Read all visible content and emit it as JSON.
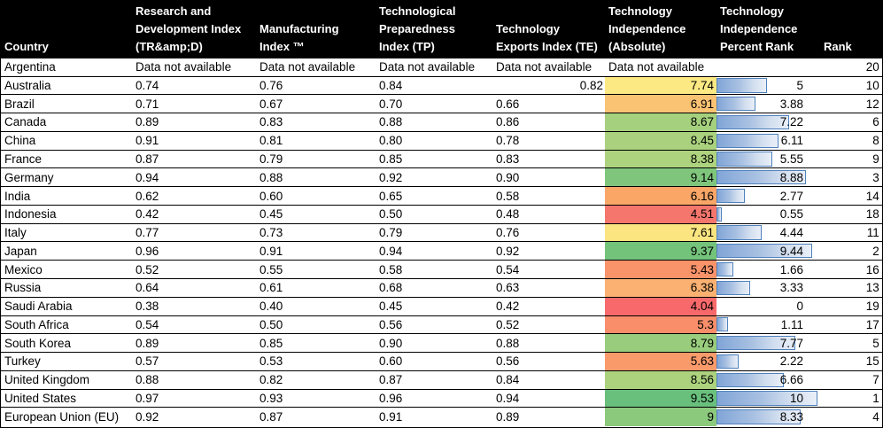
{
  "chart_data": {
    "type": "table",
    "columns": [
      {
        "id": "country",
        "label": "Country"
      },
      {
        "id": "rd",
        "label": "Research and\nDevelopment Index\n(TR&amp;D)"
      },
      {
        "id": "mfg",
        "label": "Manufacturing\nIndex ™"
      },
      {
        "id": "tp",
        "label": "Technological\nPreparedness\nIndex (TP)"
      },
      {
        "id": "te",
        "label": "Technology\nExports Index (TE)"
      },
      {
        "id": "abs",
        "label": "Technology\nIndependence\n(Absolute)"
      },
      {
        "id": "pct",
        "label": "Technology\nIndependence\nPercent Rank"
      },
      {
        "id": "rank",
        "label": "Rank"
      }
    ],
    "no_data_text": "Data not available",
    "bar_scale": {
      "min": 0,
      "max": 10
    },
    "styles": {
      "header_bg": "#000000",
      "header_fg": "#FFFFFF",
      "grid_border": "#000000",
      "bar_border": "#4F81BD",
      "bar_fill_left": "#81A5D7",
      "bar_fill_right": "#E9EFF8",
      "color_scale_min": "#F8696B",
      "color_scale_mid": "#FFEB84",
      "color_scale_max": "#63BE7B"
    },
    "rows": [
      {
        "country": "Argentina",
        "rd": "Data not available",
        "mfg": "Data not available",
        "tp": "Data not available",
        "te": "Data not available",
        "te_align": "left",
        "abs": "Data not available",
        "abs_color": null,
        "pct": "",
        "pct_value": null,
        "rank": "20"
      },
      {
        "country": "Australia",
        "rd": "0.74",
        "mfg": "0.76",
        "tp": "0.84",
        "te": "0.82",
        "te_align": "right",
        "abs": "7.74",
        "abs_color": "#FDE983",
        "pct": "5",
        "pct_value": 5,
        "rank": "10"
      },
      {
        "country": "Brazil",
        "rd": "0.71",
        "mfg": "0.67",
        "tp": "0.70",
        "te": "0.66",
        "te_align": "left",
        "abs": "6.91",
        "abs_color": "#FAC374",
        "pct": "3.88",
        "pct_value": 3.88,
        "rank": "12"
      },
      {
        "country": "Canada",
        "rd": "0.89",
        "mfg": "0.83",
        "tp": "0.88",
        "te": "0.86",
        "te_align": "left",
        "abs": "8.67",
        "abs_color": "#A5D07E",
        "pct": "7.22",
        "pct_value": 7.22,
        "rank": "6"
      },
      {
        "country": "China",
        "rd": "0.91",
        "mfg": "0.81",
        "tp": "0.80",
        "te": "0.78",
        "te_align": "left",
        "abs": "8.45",
        "abs_color": "#AAD27E",
        "pct": "6.11",
        "pct_value": 6.11,
        "rank": "8"
      },
      {
        "country": "France",
        "rd": "0.87",
        "mfg": "0.79",
        "tp": "0.85",
        "te": "0.83",
        "te_align": "left",
        "abs": "8.38",
        "abs_color": "#AED37F",
        "pct": "5.55",
        "pct_value": 5.55,
        "rank": "9"
      },
      {
        "country": "Germany",
        "rd": "0.94",
        "mfg": "0.88",
        "tp": "0.92",
        "te": "0.90",
        "te_align": "left",
        "abs": "9.14",
        "abs_color": "#7FC67C",
        "pct": "8.88",
        "pct_value": 8.88,
        "rank": "3"
      },
      {
        "country": "India",
        "rd": "0.62",
        "mfg": "0.60",
        "tp": "0.65",
        "te": "0.58",
        "te_align": "left",
        "abs": "6.16",
        "abs_color": "#F9A667",
        "pct": "2.77",
        "pct_value": 2.77,
        "rank": "14"
      },
      {
        "country": "Indonesia",
        "rd": "0.42",
        "mfg": "0.45",
        "tp": "0.50",
        "te": "0.48",
        "te_align": "left",
        "abs": "4.51",
        "abs_color": "#F5766C",
        "pct": "0.55",
        "pct_value": 0.55,
        "rank": "18"
      },
      {
        "country": "Italy",
        "rd": "0.77",
        "mfg": "0.73",
        "tp": "0.79",
        "te": "0.76",
        "te_align": "left",
        "abs": "7.61",
        "abs_color": "#FAE581",
        "pct": "4.44",
        "pct_value": 4.44,
        "rank": "11"
      },
      {
        "country": "Japan",
        "rd": "0.96",
        "mfg": "0.91",
        "tp": "0.94",
        "te": "0.92",
        "te_align": "left",
        "abs": "9.37",
        "abs_color": "#74C37B",
        "pct": "9.44",
        "pct_value": 9.44,
        "rank": "2"
      },
      {
        "country": "Mexico",
        "rd": "0.52",
        "mfg": "0.55",
        "tp": "0.58",
        "te": "0.54",
        "te_align": "left",
        "abs": "5.43",
        "abs_color": "#F9936A",
        "pct": "1.66",
        "pct_value": 1.66,
        "rank": "16"
      },
      {
        "country": "Russia",
        "rd": "0.64",
        "mfg": "0.61",
        "tp": "0.68",
        "te": "0.63",
        "te_align": "left",
        "abs": "6.38",
        "abs_color": "#FAB171",
        "pct": "3.33",
        "pct_value": 3.33,
        "rank": "13"
      },
      {
        "country": "Saudi Arabia",
        "rd": "0.38",
        "mfg": "0.40",
        "tp": "0.45",
        "te": "0.42",
        "te_align": "left",
        "abs": "4.04",
        "abs_color": "#F8696B",
        "pct": "0",
        "pct_value": 0,
        "rank": "19"
      },
      {
        "country": "South Africa",
        "rd": "0.54",
        "mfg": "0.50",
        "tp": "0.56",
        "te": "0.52",
        "te_align": "left",
        "abs": "5.3",
        "abs_color": "#F98E6A",
        "pct": "1.11",
        "pct_value": 1.11,
        "rank": "17"
      },
      {
        "country": "South Korea",
        "rd": "0.89",
        "mfg": "0.85",
        "tp": "0.90",
        "te": "0.88",
        "te_align": "left",
        "abs": "8.79",
        "abs_color": "#99CD7D",
        "pct": "7.77",
        "pct_value": 7.77,
        "rank": "5"
      },
      {
        "country": "Turkey",
        "rd": "0.57",
        "mfg": "0.53",
        "tp": "0.60",
        "te": "0.56",
        "te_align": "left",
        "abs": "5.63",
        "abs_color": "#F99A6B",
        "pct": "2.22",
        "pct_value": 2.22,
        "rank": "15"
      },
      {
        "country": "United Kingdom",
        "rd": "0.88",
        "mfg": "0.82",
        "tp": "0.87",
        "te": "0.84",
        "te_align": "left",
        "abs": "8.56",
        "abs_color": "#ACD27E",
        "pct": "6.66",
        "pct_value": 6.66,
        "rank": "7"
      },
      {
        "country": "United States",
        "rd": "0.97",
        "mfg": "0.93",
        "tp": "0.96",
        "te": "0.94",
        "te_align": "left",
        "abs": "9.53",
        "abs_color": "#69C07C",
        "pct": "10",
        "pct_value": 10,
        "rank": "1"
      },
      {
        "country": "European Union (EU)",
        "rd": "0.92",
        "mfg": "0.87",
        "tp": "0.91",
        "te": "0.89",
        "te_align": "left",
        "abs": "9",
        "abs_color": "#8BC97D",
        "pct": "8.33",
        "pct_value": 8.33,
        "rank": "4"
      }
    ]
  }
}
